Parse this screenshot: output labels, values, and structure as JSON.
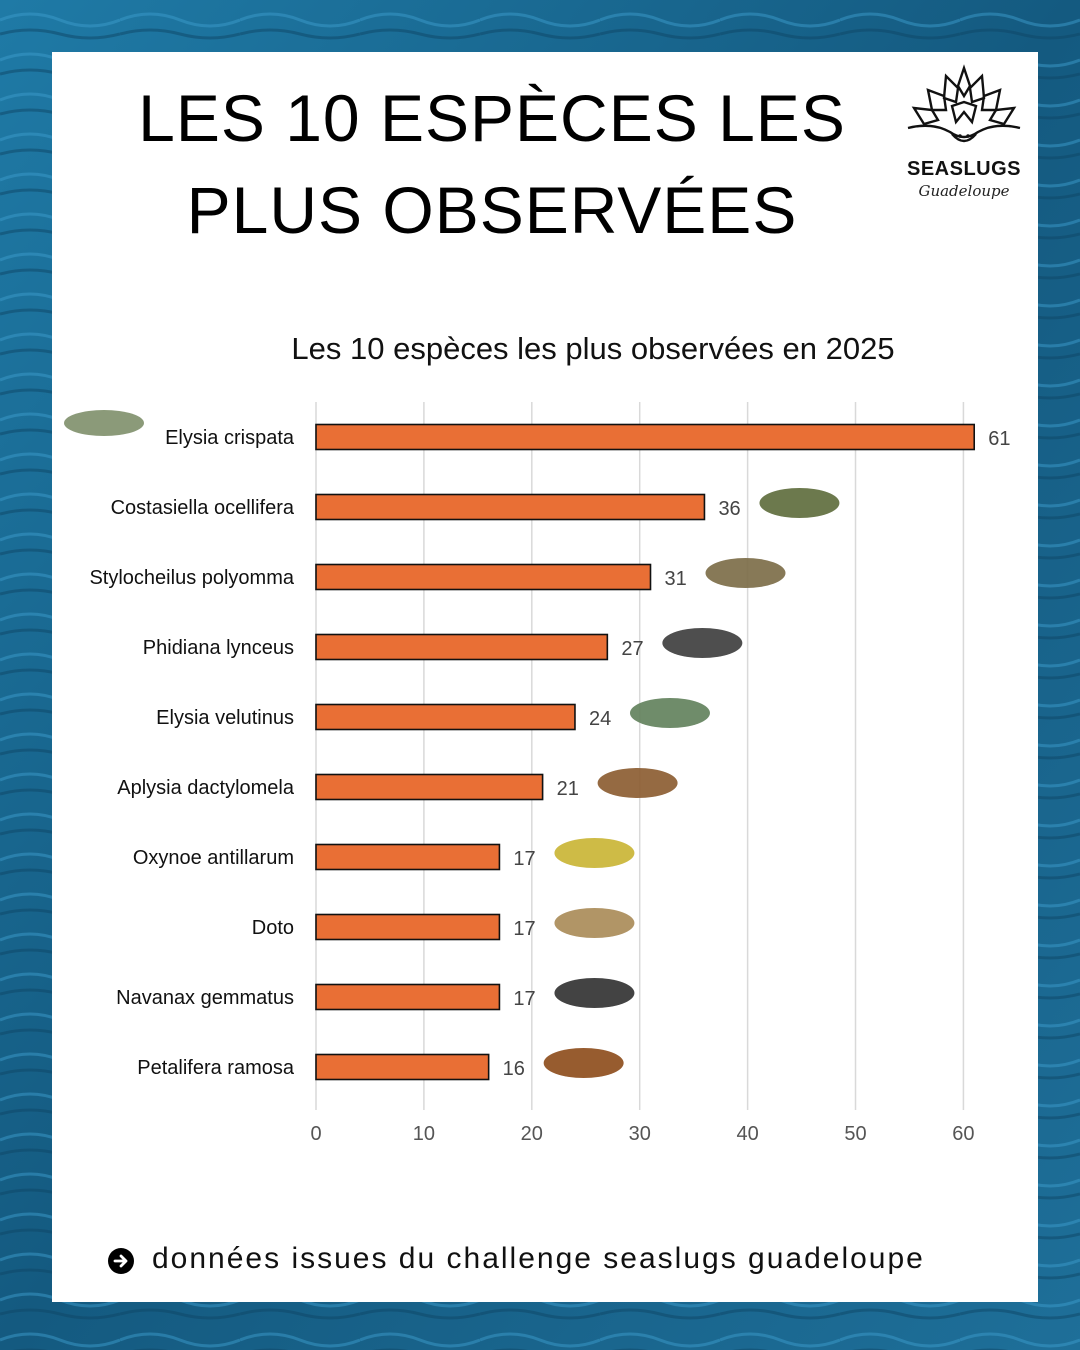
{
  "colors": {
    "background": "#1c6a93",
    "card": "#ffffff",
    "bar": "#e96f35",
    "bar_outline": "#111111",
    "grid": "#d9d9d9"
  },
  "header": {
    "title_line1": "LES 10 ESPÈCES LES",
    "title_line2": "PLUS OBSERVÉES"
  },
  "logo": {
    "name": "SEASLUGS",
    "subtitle": "Guadeloupe",
    "icon": "sea-slug-logo-icon"
  },
  "chart_data": {
    "type": "bar",
    "orientation": "horizontal",
    "title": "Les 10 espèces les plus observées en 2025",
    "categories": [
      "Elysia crispata",
      "Costasiella ocellifera",
      "Stylocheilus polyomma",
      "Phidiana lynceus",
      "Elysia velutinus",
      "Aplysia dactylomela",
      "Oxynoe antillarum",
      "Doto",
      "Navanax gemmatus",
      "Petalifera ramosa"
    ],
    "values": [
      61,
      36,
      31,
      27,
      24,
      21,
      17,
      17,
      17,
      16
    ],
    "xlim": [
      0,
      62
    ],
    "xticks": [
      0,
      10,
      20,
      30,
      40,
      50,
      60
    ],
    "grid": true,
    "data_labels": true,
    "xlabel": "",
    "ylabel": ""
  },
  "footer": {
    "icon": "arrow-right-circle-icon",
    "text": "données issues du challenge seaslugs guadeloupe"
  }
}
